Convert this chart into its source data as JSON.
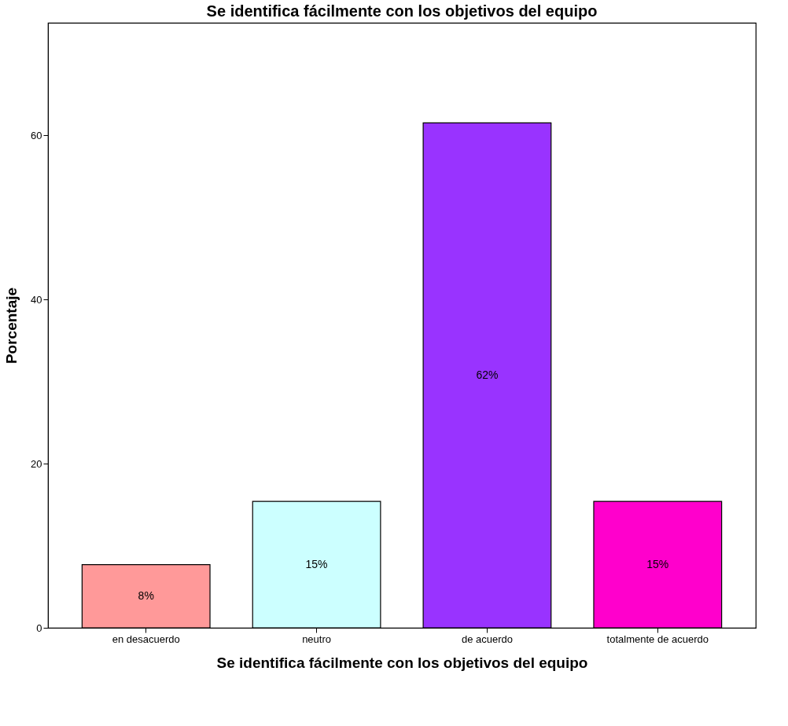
{
  "chart_data": {
    "type": "bar",
    "title": "Se identifica fácilmente con los objetivos del equipo",
    "xlabel": "Se identifica fácilmente con los objetivos del equipo",
    "ylabel": "Porcentaje",
    "categories": [
      "en desacuerdo",
      "neutro",
      "de acuerdo",
      "totalmente de acuerdo"
    ],
    "values": [
      7.7,
      15.4,
      61.5,
      15.4
    ],
    "colors": [
      "#ff9999",
      "#ccffff",
      "#9933ff",
      "#ff00cc"
    ],
    "value_labels": [
      "8%",
      "15%",
      "62%",
      "15%"
    ],
    "ylim": [
      0,
      73.7
    ],
    "yticks": [
      0,
      20,
      40,
      60
    ],
    "grid": false,
    "legend": false
  }
}
